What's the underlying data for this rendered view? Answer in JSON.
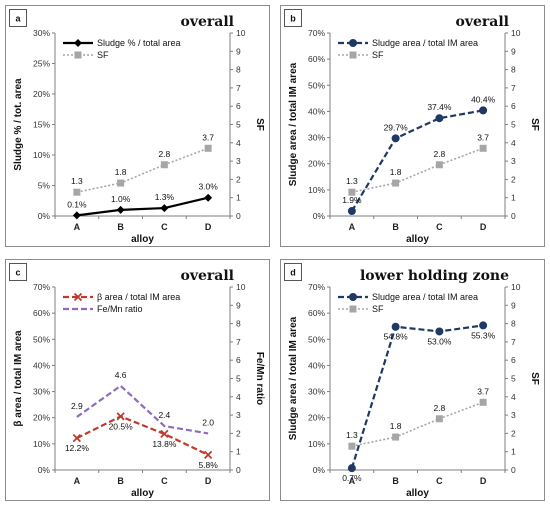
{
  "chart_data": [
    {
      "panel_label": "a",
      "title": "overall",
      "type": "line",
      "categories": [
        "A",
        "B",
        "C",
        "D"
      ],
      "xlabel": "alloy",
      "ylabel": "Sludge % / tot. area",
      "y2label": "SF",
      "ylim": [
        0,
        30
      ],
      "ystep": 5,
      "y2lim": [
        0,
        10
      ],
      "y2step": 1,
      "legend_placement": "top-left",
      "series": [
        {
          "name": "Sludge % / total area",
          "axis": "left",
          "values": [
            0.1,
            1.0,
            1.3,
            3.0
          ],
          "labels": [
            "0.1%",
            "1.0%",
            "1.3%",
            "3.0%"
          ],
          "color": "#000000",
          "dash": "solid",
          "marker": "diamond",
          "label_pos": "above"
        },
        {
          "name": "SF",
          "axis": "right",
          "values": [
            1.3,
            1.8,
            2.8,
            3.7
          ],
          "labels": [
            "1.3",
            "1.8",
            "2.8",
            "3.7"
          ],
          "color": "#a6a6a6",
          "dash": "dotted",
          "marker": "square",
          "label_pos": "above"
        }
      ]
    },
    {
      "panel_label": "b",
      "title": "overall",
      "type": "line",
      "categories": [
        "A",
        "B",
        "C",
        "D"
      ],
      "xlabel": "alloy",
      "ylabel": "Sludge area / total IM area",
      "y2label": "SF",
      "ylim": [
        0,
        70
      ],
      "ystep": 10,
      "y2lim": [
        0,
        10
      ],
      "y2step": 1,
      "legend_placement": "top-left",
      "series": [
        {
          "name": "Sludge area / total IM area",
          "axis": "left",
          "values": [
            1.9,
            29.7,
            37.4,
            40.4
          ],
          "labels": [
            "1.9%",
            "29.7%",
            "37.4%",
            "40.4%"
          ],
          "color": "#1f3864",
          "dash": "dashed",
          "marker": "circle",
          "label_pos": "above"
        },
        {
          "name": "SF",
          "axis": "right",
          "values": [
            1.3,
            1.8,
            2.8,
            3.7
          ],
          "labels": [
            "1.3",
            "1.8",
            "2.8",
            "3.7"
          ],
          "color": "#a6a6a6",
          "dash": "dotted",
          "marker": "square",
          "label_pos": "above"
        }
      ]
    },
    {
      "panel_label": "c",
      "title": "overall",
      "type": "line",
      "categories": [
        "A",
        "B",
        "C",
        "D"
      ],
      "xlabel": "alloy",
      "ylabel": "β area / total IM area",
      "y2label": "Fe/Mn ratio",
      "ylim": [
        0,
        70
      ],
      "ystep": 10,
      "y2lim": [
        0,
        10
      ],
      "y2step": 1,
      "legend_placement": "top-left",
      "series": [
        {
          "name": "β area / total IM area",
          "axis": "left",
          "values": [
            12.2,
            20.5,
            13.8,
            5.8
          ],
          "labels": [
            "12.2%",
            "20.5%",
            "13.8%",
            "5.8%"
          ],
          "color": "#c0392b",
          "dash": "dashed",
          "marker": "x",
          "label_pos": "below"
        },
        {
          "name": "Fe/Mn ratio",
          "axis": "right",
          "values": [
            2.9,
            4.6,
            2.4,
            2.0
          ],
          "labels": [
            "2.9",
            "4.6",
            "2.4",
            "2.0"
          ],
          "color": "#8e6bbf",
          "dash": "dashed",
          "marker": "none",
          "label_pos": "above"
        }
      ]
    },
    {
      "panel_label": "d",
      "title": "lower holding zone",
      "type": "line",
      "categories": [
        "A",
        "B",
        "C",
        "D"
      ],
      "xlabel": "alloy",
      "ylabel": "Sludge area / total IM area",
      "y2label": "SF",
      "ylim": [
        0,
        70
      ],
      "ystep": 10,
      "y2lim": [
        0,
        10
      ],
      "y2step": 1,
      "legend_placement": "top-left",
      "series": [
        {
          "name": "Sludge area / total IM area",
          "axis": "left",
          "values": [
            0.7,
            54.8,
            53.0,
            55.3
          ],
          "labels": [
            "0.7%",
            "54.8%",
            "53.0%",
            "55.3%"
          ],
          "color": "#1f3864",
          "dash": "dashed",
          "marker": "circle",
          "label_pos": "below"
        },
        {
          "name": "SF",
          "axis": "right",
          "values": [
            1.3,
            1.8,
            2.8,
            3.7
          ],
          "labels": [
            "1.3",
            "1.8",
            "2.8",
            "3.7"
          ],
          "color": "#a6a6a6",
          "dash": "dotted",
          "marker": "square",
          "label_pos": "above"
        }
      ]
    }
  ]
}
